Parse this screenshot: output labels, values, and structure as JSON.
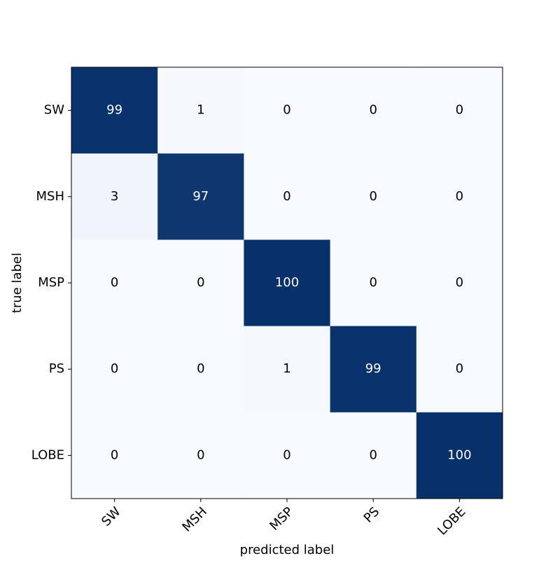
{
  "chart_data": {
    "type": "heatmap",
    "x_categories": [
      "SW",
      "MSH",
      "MSP",
      "PS",
      "LOBE"
    ],
    "y_categories": [
      "SW",
      "MSH",
      "MSP",
      "PS",
      "LOBE"
    ],
    "values": [
      [
        99,
        1,
        0,
        0,
        0
      ],
      [
        3,
        97,
        0,
        0,
        0
      ],
      [
        0,
        0,
        100,
        0,
        0
      ],
      [
        0,
        0,
        1,
        99,
        0
      ],
      [
        0,
        0,
        0,
        0,
        100
      ]
    ],
    "xlabel": "predicted label",
    "ylabel": "true label",
    "colormap": [
      "#f7fbff",
      "#08306b"
    ]
  }
}
